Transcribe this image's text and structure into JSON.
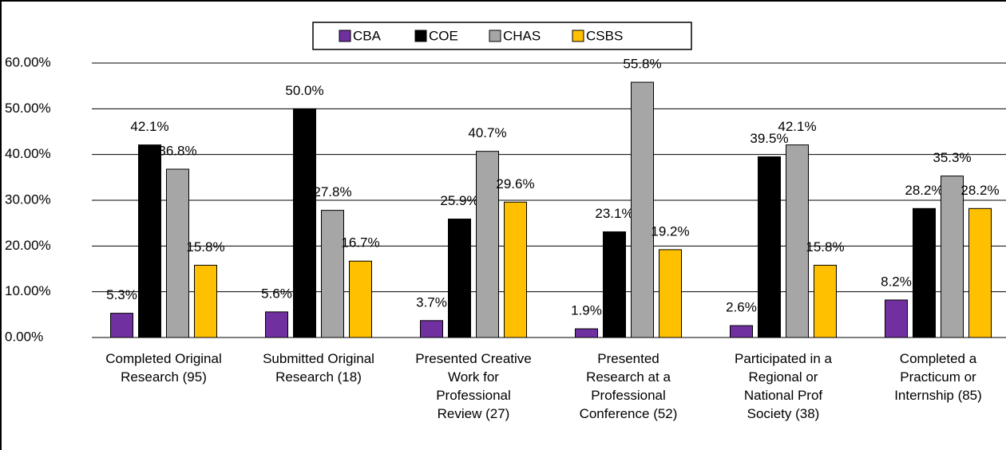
{
  "chart_data": {
    "type": "bar",
    "categories": [
      "Completed Original\nResearch (95)",
      "Submitted Original\nResearch (18)",
      "Presented Creative\nWork for\nProfessional\nReview (27)",
      "Presented\nResearch at a\nProfessional\nConference (52)",
      "Participated in a\nRegional or\nNational Prof\nSociety (38)",
      "Completed a\nPracticum or\nInternship (85)"
    ],
    "series": [
      {
        "name": "CBA",
        "color": "#7030a0",
        "values": [
          5.3,
          5.6,
          3.7,
          1.9,
          2.6,
          8.2
        ],
        "value_labels": [
          "5.3%",
          "5.6%",
          "3.7%",
          "1.9%",
          "2.6%",
          "8.2%"
        ]
      },
      {
        "name": "COE",
        "color": "#000000",
        "values": [
          42.1,
          50.0,
          25.9,
          23.1,
          39.5,
          28.2
        ],
        "value_labels": [
          "42.1%",
          "50.0%",
          "25.9%",
          "23.1%",
          "39.5%",
          "28.2%"
        ]
      },
      {
        "name": "CHAS",
        "color": "#a6a6a6",
        "values": [
          36.8,
          27.8,
          40.7,
          55.8,
          42.1,
          35.3
        ],
        "value_labels": [
          "36.8%",
          "27.8%",
          "40.7%",
          "55.8%",
          "42.1%",
          "35.3%"
        ]
      },
      {
        "name": "CSBS",
        "color": "#ffc000",
        "values": [
          15.8,
          16.7,
          29.6,
          19.2,
          15.8,
          28.2
        ],
        "value_labels": [
          "15.8%",
          "16.7%",
          "29.6%",
          "19.2%",
          "15.8%",
          "28.2%"
        ]
      }
    ],
    "ylim": [
      0,
      60
    ],
    "yticks": [
      {
        "value": 0,
        "label": "0.00%"
      },
      {
        "value": 10,
        "label": "10.00%"
      },
      {
        "value": 20,
        "label": "20.00%"
      },
      {
        "value": 30,
        "label": "30.00%"
      },
      {
        "value": 40,
        "label": "40.00%"
      },
      {
        "value": 50,
        "label": "50.00%"
      },
      {
        "value": 60,
        "label": "60.00%"
      }
    ],
    "grid": true,
    "legend": "top"
  }
}
